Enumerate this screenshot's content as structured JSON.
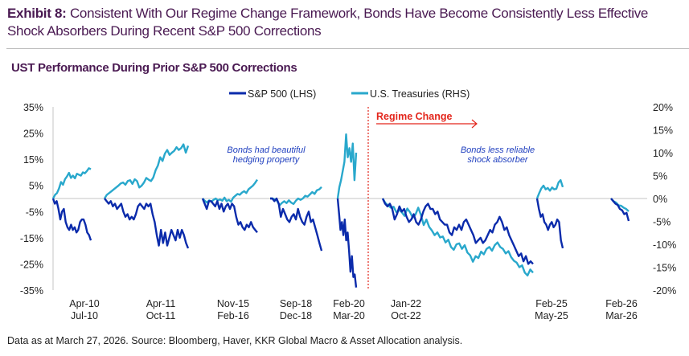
{
  "header": {
    "exhibit": "Exhibit 8:",
    "title": "Consistent With Our Regime Change Framework, Bonds Have Become Consistently Less Effective Shock Absorbers During Recent S&P 500 Corrections"
  },
  "source": "Data as at March 27, 2026. Source: Bloomberg, Haver, KKR Global Macro & Asset Allocation analysis.",
  "colors": {
    "sp500": "#0b2bab",
    "ust": "#29a8cc",
    "regime": "#e3261c",
    "title": "#4a1a52",
    "annotation": "#1f3fbf"
  },
  "chart_data": {
    "type": "line",
    "title": "UST Performance During Prior S&P 500 Corrections",
    "legend_position": "top-center",
    "series_names": {
      "sp500": "S&P 500 (LHS)",
      "ust": "U.S. Treasuries (RHS)"
    },
    "y_left": {
      "ylim": [
        -35,
        35
      ],
      "ticks": [
        "35%",
        "25%",
        "15%",
        "5%",
        "-5%",
        "-15%",
        "-25%",
        "-35%"
      ],
      "values": [
        35,
        25,
        15,
        5,
        -5,
        -15,
        -25,
        -35
      ]
    },
    "y_right": {
      "ylim": [
        -20,
        20
      ],
      "ticks": [
        "20%",
        "15%",
        "10%",
        "5%",
        "0%",
        "-5%",
        "-10%",
        "-15%",
        "-20%"
      ],
      "values": [
        20,
        15,
        10,
        5,
        0,
        -5,
        -10,
        -15,
        -20
      ]
    },
    "grid": false,
    "regime_label": "Regime Change",
    "annotations": [
      "Bonds had beautiful hedging property",
      "Bonds less reliable shock absorber"
    ],
    "annotation_lines": [
      [
        "Bonds had beautiful",
        "hedging property"
      ],
      [
        "Bonds less reliable",
        "shock absorber"
      ]
    ],
    "episodes": [
      {
        "start": "Apr-10",
        "end": "Jul-10",
        "sp500": [
          0,
          -2,
          -1,
          -4,
          -8,
          -5,
          -4,
          -9,
          -11,
          -12,
          -10,
          -12,
          -11,
          -13,
          -12,
          -9,
          -8,
          -8,
          -10,
          -13,
          -14,
          -16
        ],
        "ust": [
          0,
          0.8,
          1.2,
          2.2,
          3.6,
          3,
          4.2,
          4.8,
          5.6,
          4.5,
          5,
          4.4,
          5.4,
          5.2,
          5,
          5.7,
          5.5,
          6,
          6.6,
          6.4
        ]
      },
      {
        "start": "Apr-11",
        "end": "Oct-11",
        "sp500": [
          0,
          -1,
          -2,
          -1,
          -3,
          -2,
          -4,
          -3,
          -2,
          -5,
          -7,
          -6,
          -8,
          -7,
          -8,
          -6,
          -3,
          -2,
          -3,
          -4,
          -2,
          -3,
          -2,
          -6,
          -9,
          -14,
          -18,
          -12,
          -17,
          -13,
          -18,
          -15,
          -12,
          -14,
          -16,
          -12,
          -15,
          -12,
          -14,
          -17,
          -19
        ],
        "ust": [
          0,
          0.8,
          1.2,
          1.6,
          2,
          2.4,
          2.8,
          3.3,
          3.5,
          3,
          3.8,
          4,
          3.2,
          4.2,
          3.8,
          2.4,
          2.8,
          3.5,
          4.5,
          4.1,
          3.8,
          4.6,
          6.2,
          7.2,
          9,
          8.2,
          9.8,
          10.6,
          9.5,
          10,
          10.4,
          11.2,
          10.6,
          11,
          11.8,
          10,
          11.5
        ]
      },
      {
        "start": "Nov-15",
        "end": "Feb-16",
        "sp500": [
          0,
          -2,
          -4,
          -1,
          -1,
          -2,
          -3,
          -1,
          -4,
          -2,
          -5,
          -3,
          -2,
          -4,
          -2,
          -3,
          -7,
          -10,
          -9,
          -11,
          -12,
          -10,
          -11,
          -9,
          -11,
          -12,
          -13
        ],
        "ust": [
          0,
          -0.5,
          -0.9,
          -0.4,
          -0.7,
          -0.3,
          0,
          -0.4,
          -0.2,
          -0.5,
          0.2,
          -0.6,
          -0.3,
          -0.7,
          0.2,
          0.6,
          1,
          0.8,
          1.3,
          1.6,
          1.2,
          2,
          2.4,
          2.8,
          3.4,
          4.1
        ]
      },
      {
        "start": "Sep-18",
        "end": "Dec-18",
        "sp500": [
          0,
          0,
          -1,
          0,
          -2,
          -7,
          -4,
          -6,
          -8,
          -9,
          -7,
          -6,
          -8,
          -4,
          -7,
          -9,
          -10,
          -7,
          -5,
          -9,
          -8,
          -11,
          -14,
          -17,
          -20
        ],
        "ust": [
          0,
          0,
          -0.2,
          -0.5,
          -1.5,
          -1,
          -0.6,
          -1,
          -0.4,
          -0.9,
          -1.2,
          -0.5,
          0,
          -0.3,
          0,
          0.6,
          0.4,
          0.9,
          1.4,
          1,
          1.8,
          2,
          2.5
        ]
      },
      {
        "start": "Feb-20",
        "end": "Mar-20",
        "sp500": [
          0,
          -6,
          -12,
          -9,
          -14,
          -8,
          -16,
          -13,
          -20,
          -28,
          -22,
          -30,
          -29,
          -34
        ],
        "ust": [
          0,
          2.5,
          4,
          6,
          8,
          14,
          9,
          11,
          8,
          12,
          4,
          10
        ]
      },
      {
        "start": "Jan-22",
        "end": "Oct-22",
        "sp500": [
          0,
          -2,
          -3,
          -2,
          -4,
          -8,
          -6,
          -3,
          -5,
          -4,
          -7,
          -9,
          -8,
          -6,
          -9,
          -10,
          -8,
          -5,
          -3,
          -2,
          -4,
          -4,
          -6,
          -5,
          -8,
          -9,
          -10,
          -10,
          -13,
          -14,
          -11,
          -12,
          -10,
          -12,
          -9,
          -8,
          -10,
          -12,
          -14,
          -17,
          -16,
          -15,
          -17,
          -16,
          -14,
          -12,
          -13,
          -10,
          -9,
          -7,
          -9,
          -12,
          -11,
          -14,
          -16,
          -18,
          -20,
          -22,
          -21,
          -24,
          -22,
          -25,
          -24,
          -25
        ],
        "ust": [
          0,
          -1,
          -1.5,
          -2,
          -1.8,
          -3,
          -2.5,
          -3,
          -3.8,
          -2.2,
          -3,
          -4.2,
          -3.5,
          -2,
          -3.6,
          -5.8,
          -4.6,
          -6.2,
          -7,
          -8,
          -7.4,
          -8.5,
          -8.3,
          -9.6,
          -9,
          -10.6,
          -11.2,
          -10,
          -9.8,
          -11,
          -10.2,
          -11.8,
          -12.4,
          -13.8,
          -12.6,
          -13,
          -11.6,
          -12.2,
          -11,
          -10.6,
          -11.4,
          -10.2,
          -9.6,
          -10.6,
          -11,
          -12,
          -11.5,
          -12.8,
          -13.6,
          -14,
          -15,
          -14.6,
          -16.2,
          -16.8,
          -15.5,
          -16.2
        ]
      },
      {
        "start": "Feb-25",
        "end": "May-25",
        "sp500": [
          0,
          -4,
          -7,
          -6,
          -9,
          -10,
          -12,
          -10,
          -9,
          -11,
          -10,
          -8,
          -9,
          -16,
          -19
        ],
        "ust": [
          0,
          1.2,
          2.2,
          2.8,
          2,
          2.3,
          1.7,
          2.4,
          2,
          2.1,
          3.5,
          4,
          2.5
        ]
      },
      {
        "start": "Feb-26",
        "end": "Mar-26",
        "sp500": [
          0,
          -1,
          -2,
          -2.5,
          -4,
          -4.5,
          -6,
          -5.5,
          -8.6
        ],
        "ust": [
          0,
          -0.6,
          -0.9,
          -1.5,
          -1.6,
          -2,
          -2.3,
          -2.8
        ]
      }
    ]
  }
}
